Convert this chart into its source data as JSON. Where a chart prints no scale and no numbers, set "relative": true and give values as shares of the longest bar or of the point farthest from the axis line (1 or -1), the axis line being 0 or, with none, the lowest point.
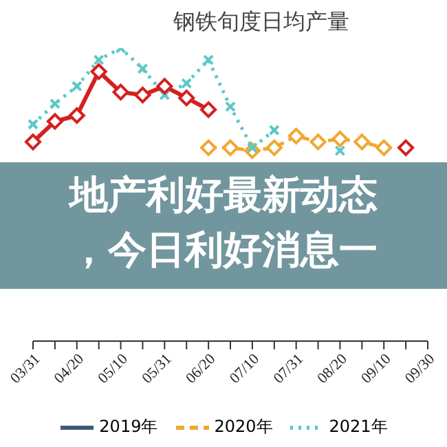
{
  "chart_data": {
    "type": "line",
    "title": "钢铁旬度日均产量",
    "relative": true,
    "legend": "bottom",
    "grid": false,
    "categories": [
      "03/31",
      null,
      "04/20",
      null,
      "05/10",
      null,
      "05/31",
      null,
      "06/20",
      null,
      "07/10",
      null,
      "07/31",
      null,
      "08/20",
      null,
      "09/10",
      null,
      "09/30"
    ],
    "series": [
      {
        "name": "2019年",
        "color": "#3d5a7a",
        "marker": "circle",
        "line_style": "solid",
        "values": [
          null,
          null,
          null,
          null,
          null,
          null,
          null,
          null,
          null,
          null,
          null,
          null,
          null,
          null,
          null,
          null,
          null,
          null,
          null
        ]
      },
      {
        "name": "2020年",
        "color": "#f0a830",
        "marker": "diamond",
        "line_style": "dashed",
        "values": [
          null,
          null,
          null,
          null,
          null,
          null,
          null,
          null,
          0.66,
          0.66,
          0.65,
          0.66,
          0.7,
          0.68,
          0.69,
          0.68,
          0.66,
          null,
          null
        ]
      },
      {
        "name": "2021年",
        "color": "#5cc8c8",
        "marker": "cross",
        "line_style": "dotted",
        "values": [
          0.74,
          0.81,
          0.87,
          0.96,
          1,
          0.93,
          0.84,
          0.88,
          0.96,
          0.8,
          0.66,
          0.72,
          null,
          null,
          0.65,
          null,
          null,
          null,
          null
        ]
      },
      {
        "color": "#d42020",
        "marker": "diamond",
        "line_style": "solid",
        "values": [
          0.68,
          0.75,
          0.77,
          0.92,
          0.85,
          0.84,
          0.87,
          0.83,
          0.79,
          null,
          null,
          null,
          null,
          null,
          null,
          null,
          null,
          0.66,
          null
        ]
      }
    ],
    "annotations": [
      "地产利好最新动态",
      "，今日利好消息一"
    ]
  }
}
